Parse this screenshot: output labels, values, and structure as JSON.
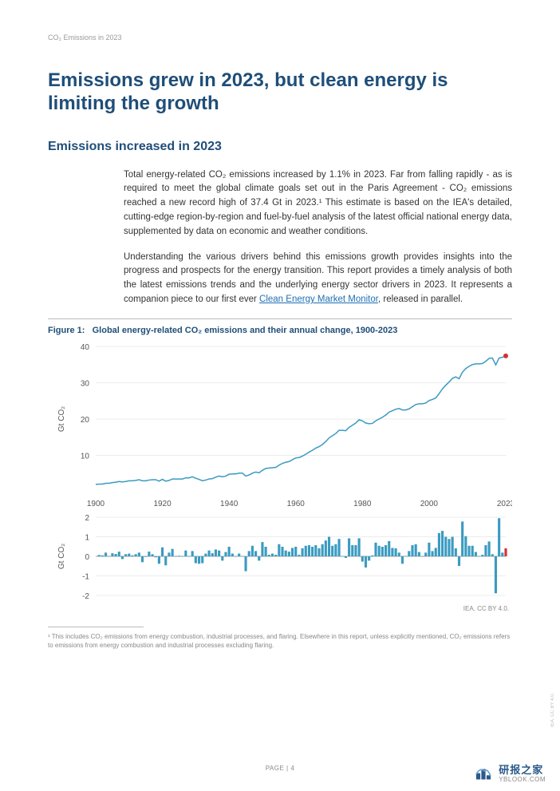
{
  "header": {
    "doc_title": "CO₂ Emissions in 2023"
  },
  "main_title": "Emissions grew in 2023, but clean energy is limiting the growth",
  "sub_title": "Emissions increased in 2023",
  "paragraphs": {
    "p1": "Total energy-related CO₂ emissions increased by 1.1% in 2023. Far from falling rapidly - as is required to meet the global climate goals set out in the Paris Agreement - CO₂ emissions reached a new record high of 37.4 Gt in 2023.¹ This estimate is based on the IEA's detailed, cutting-edge region-by-region and fuel-by-fuel analysis of the latest official national energy data, supplemented by data on economic and weather conditions.",
    "p2_a": "Understanding the various drivers behind this emissions growth provides insights into the progress and prospects for the energy transition. This report provides a timely analysis of both the latest emissions trends and the underlying energy sector drivers in 2023. It represents a companion piece to our first ever ",
    "p2_link": "Clean Energy Market Monitor",
    "p2_b": ", released in parallel."
  },
  "figure": {
    "caption_prefix": "Figure 1:",
    "caption": "Global energy-related CO₂ emissions and their annual change, 1900-2023",
    "attribution": "IEA. CC BY 4.0.",
    "top_chart": {
      "type": "line",
      "ylabel": "Gt CO₂",
      "ylim": [
        0,
        40
      ],
      "yticks": [
        10,
        20,
        30,
        40
      ],
      "xlim": [
        1900,
        2023
      ],
      "xticks": [
        1900,
        1920,
        1940,
        1960,
        1980,
        2000,
        2023
      ],
      "line_color": "#3a9bc1",
      "line_width": 1.5,
      "last_point_color": "#d93030",
      "background_color": "#ffffff",
      "grid_color": "#d9d9d9",
      "series": [
        [
          1900,
          2.0
        ],
        [
          1901,
          2.1
        ],
        [
          1902,
          2.1
        ],
        [
          1903,
          2.3
        ],
        [
          1904,
          2.3
        ],
        [
          1905,
          2.5
        ],
        [
          1906,
          2.6
        ],
        [
          1907,
          2.8
        ],
        [
          1908,
          2.7
        ],
        [
          1909,
          2.8
        ],
        [
          1910,
          3.0
        ],
        [
          1911,
          3.0
        ],
        [
          1912,
          3.1
        ],
        [
          1913,
          3.3
        ],
        [
          1914,
          3.0
        ],
        [
          1915,
          3.0
        ],
        [
          1916,
          3.2
        ],
        [
          1917,
          3.3
        ],
        [
          1918,
          3.3
        ],
        [
          1919,
          2.9
        ],
        [
          1920,
          3.4
        ],
        [
          1921,
          2.9
        ],
        [
          1922,
          3.1
        ],
        [
          1923,
          3.5
        ],
        [
          1924,
          3.5
        ],
        [
          1925,
          3.5
        ],
        [
          1926,
          3.5
        ],
        [
          1927,
          3.8
        ],
        [
          1928,
          3.8
        ],
        [
          1929,
          4.1
        ],
        [
          1930,
          3.7
        ],
        [
          1931,
          3.4
        ],
        [
          1932,
          3.0
        ],
        [
          1933,
          3.2
        ],
        [
          1934,
          3.5
        ],
        [
          1935,
          3.6
        ],
        [
          1936,
          4.0
        ],
        [
          1937,
          4.3
        ],
        [
          1938,
          4.1
        ],
        [
          1939,
          4.3
        ],
        [
          1940,
          4.8
        ],
        [
          1941,
          4.9
        ],
        [
          1942,
          4.9
        ],
        [
          1943,
          5.1
        ],
        [
          1944,
          5.1
        ],
        [
          1945,
          4.3
        ],
        [
          1946,
          4.6
        ],
        [
          1947,
          5.1
        ],
        [
          1948,
          5.4
        ],
        [
          1949,
          5.2
        ],
        [
          1950,
          5.9
        ],
        [
          1951,
          6.4
        ],
        [
          1952,
          6.5
        ],
        [
          1953,
          6.6
        ],
        [
          1954,
          6.7
        ],
        [
          1955,
          7.3
        ],
        [
          1956,
          7.8
        ],
        [
          1957,
          8.1
        ],
        [
          1958,
          8.3
        ],
        [
          1959,
          8.8
        ],
        [
          1960,
          9.3
        ],
        [
          1961,
          9.4
        ],
        [
          1962,
          9.8
        ],
        [
          1963,
          10.3
        ],
        [
          1964,
          10.9
        ],
        [
          1965,
          11.4
        ],
        [
          1966,
          12.0
        ],
        [
          1967,
          12.4
        ],
        [
          1968,
          13.0
        ],
        [
          1969,
          13.8
        ],
        [
          1970,
          14.8
        ],
        [
          1971,
          15.4
        ],
        [
          1972,
          16.0
        ],
        [
          1973,
          16.9
        ],
        [
          1974,
          16.9
        ],
        [
          1975,
          16.8
        ],
        [
          1976,
          17.7
        ],
        [
          1977,
          18.3
        ],
        [
          1978,
          18.9
        ],
        [
          1979,
          19.8
        ],
        [
          1980,
          19.5
        ],
        [
          1981,
          18.9
        ],
        [
          1982,
          18.7
        ],
        [
          1983,
          18.8
        ],
        [
          1984,
          19.5
        ],
        [
          1985,
          20.0
        ],
        [
          1986,
          20.5
        ],
        [
          1987,
          21.1
        ],
        [
          1988,
          21.9
        ],
        [
          1989,
          22.3
        ],
        [
          1990,
          22.7
        ],
        [
          1991,
          22.9
        ],
        [
          1992,
          22.5
        ],
        [
          1993,
          22.5
        ],
        [
          1994,
          22.8
        ],
        [
          1995,
          23.4
        ],
        [
          1996,
          24.0
        ],
        [
          1997,
          24.2
        ],
        [
          1998,
          24.2
        ],
        [
          1999,
          24.4
        ],
        [
          2000,
          25.1
        ],
        [
          2001,
          25.4
        ],
        [
          2002,
          25.8
        ],
        [
          2003,
          27.0
        ],
        [
          2004,
          28.3
        ],
        [
          2005,
          29.3
        ],
        [
          2006,
          30.2
        ],
        [
          2007,
          31.2
        ],
        [
          2008,
          31.6
        ],
        [
          2009,
          31.1
        ],
        [
          2010,
          32.9
        ],
        [
          2011,
          33.9
        ],
        [
          2012,
          34.5
        ],
        [
          2013,
          35.0
        ],
        [
          2014,
          35.2
        ],
        [
          2015,
          35.2
        ],
        [
          2016,
          35.3
        ],
        [
          2017,
          35.9
        ],
        [
          2018,
          36.7
        ],
        [
          2019,
          36.8
        ],
        [
          2020,
          34.9
        ],
        [
          2021,
          36.8
        ],
        [
          2022,
          37.0
        ],
        [
          2023,
          37.4
        ]
      ]
    },
    "bottom_chart": {
      "type": "bar",
      "ylabel": "Gt CO₂",
      "ylim": [
        -2,
        2
      ],
      "yticks": [
        -2,
        -1,
        0,
        1,
        2
      ],
      "xlim": [
        1900,
        2023
      ],
      "bar_color": "#3a9bc1",
      "last_bar_color": "#d93030",
      "background_color": "#ffffff",
      "grid_color": "#d9d9d9",
      "zero_line_color": "#888888",
      "series": [
        [
          1901,
          0.07
        ],
        [
          1902,
          0.05
        ],
        [
          1903,
          0.19
        ],
        [
          1904,
          0.01
        ],
        [
          1905,
          0.16
        ],
        [
          1906,
          0.12
        ],
        [
          1907,
          0.24
        ],
        [
          1908,
          -0.14
        ],
        [
          1909,
          0.11
        ],
        [
          1910,
          0.14
        ],
        [
          1911,
          0.05
        ],
        [
          1912,
          0.11
        ],
        [
          1913,
          0.19
        ],
        [
          1914,
          -0.3
        ],
        [
          1915,
          -0.03
        ],
        [
          1916,
          0.24
        ],
        [
          1917,
          0.11
        ],
        [
          1918,
          -0.05
        ],
        [
          1919,
          -0.38
        ],
        [
          1920,
          0.46
        ],
        [
          1921,
          -0.46
        ],
        [
          1922,
          0.19
        ],
        [
          1923,
          0.38
        ],
        [
          1924,
          0.01
        ],
        [
          1925,
          0.03
        ],
        [
          1926,
          -0.01
        ],
        [
          1927,
          0.3
        ],
        [
          1928,
          0.01
        ],
        [
          1929,
          0.27
        ],
        [
          1930,
          -0.35
        ],
        [
          1931,
          -0.38
        ],
        [
          1932,
          -0.35
        ],
        [
          1933,
          0.14
        ],
        [
          1934,
          0.3
        ],
        [
          1935,
          0.16
        ],
        [
          1936,
          0.35
        ],
        [
          1937,
          0.3
        ],
        [
          1938,
          -0.22
        ],
        [
          1939,
          0.22
        ],
        [
          1940,
          0.49
        ],
        [
          1941,
          0.14
        ],
        [
          1942,
          0.01
        ],
        [
          1943,
          0.14
        ],
        [
          1944,
          0.01
        ],
        [
          1945,
          -0.76
        ],
        [
          1946,
          0.27
        ],
        [
          1947,
          0.54
        ],
        [
          1948,
          0.27
        ],
        [
          1949,
          -0.22
        ],
        [
          1950,
          0.73
        ],
        [
          1951,
          0.49
        ],
        [
          1952,
          0.08
        ],
        [
          1953,
          0.14
        ],
        [
          1954,
          0.08
        ],
        [
          1955,
          0.62
        ],
        [
          1956,
          0.49
        ],
        [
          1957,
          0.3
        ],
        [
          1958,
          0.24
        ],
        [
          1959,
          0.43
        ],
        [
          1960,
          0.49
        ],
        [
          1961,
          0.08
        ],
        [
          1962,
          0.41
        ],
        [
          1963,
          0.54
        ],
        [
          1964,
          0.57
        ],
        [
          1965,
          0.49
        ],
        [
          1966,
          0.57
        ],
        [
          1967,
          0.41
        ],
        [
          1968,
          0.62
        ],
        [
          1969,
          0.81
        ],
        [
          1970,
          1.0
        ],
        [
          1971,
          0.54
        ],
        [
          1972,
          0.62
        ],
        [
          1973,
          0.89
        ],
        [
          1974,
          0.01
        ],
        [
          1975,
          -0.08
        ],
        [
          1976,
          0.92
        ],
        [
          1977,
          0.57
        ],
        [
          1978,
          0.57
        ],
        [
          1979,
          0.92
        ],
        [
          1980,
          -0.27
        ],
        [
          1981,
          -0.57
        ],
        [
          1982,
          -0.22
        ],
        [
          1983,
          0.05
        ],
        [
          1984,
          0.7
        ],
        [
          1985,
          0.54
        ],
        [
          1986,
          0.49
        ],
        [
          1987,
          0.57
        ],
        [
          1988,
          0.78
        ],
        [
          1989,
          0.43
        ],
        [
          1990,
          0.41
        ],
        [
          1991,
          0.19
        ],
        [
          1992,
          -0.38
        ],
        [
          1993,
          0.01
        ],
        [
          1994,
          0.27
        ],
        [
          1995,
          0.57
        ],
        [
          1996,
          0.62
        ],
        [
          1997,
          0.22
        ],
        [
          1998,
          0.01
        ],
        [
          1999,
          0.19
        ],
        [
          2000,
          0.7
        ],
        [
          2001,
          0.27
        ],
        [
          2002,
          0.43
        ],
        [
          2003,
          1.19
        ],
        [
          2004,
          1.3
        ],
        [
          2005,
          1.0
        ],
        [
          2006,
          0.89
        ],
        [
          2007,
          1.0
        ],
        [
          2008,
          0.41
        ],
        [
          2009,
          -0.49
        ],
        [
          2010,
          1.78
        ],
        [
          2011,
          1.03
        ],
        [
          2012,
          0.54
        ],
        [
          2013,
          0.54
        ],
        [
          2014,
          0.22
        ],
        [
          2015,
          0.01
        ],
        [
          2016,
          0.08
        ],
        [
          2017,
          0.57
        ],
        [
          2018,
          0.76
        ],
        [
          2019,
          0.11
        ],
        [
          2020,
          -1.89
        ],
        [
          2021,
          1.95
        ],
        [
          2022,
          0.19
        ],
        [
          2023,
          0.41
        ]
      ]
    }
  },
  "footnote": "¹ This includes CO₂ emissions from energy combustion, industrial processes, and flaring. Elsewhere in this report, unless explicitly mentioned, CO₂ emissions refers to emissions from energy combustion and industrial processes excluding flaring.",
  "page_number": "PAGE | 4",
  "side_attrib": "IEA. CC BY 4.0.",
  "watermark": {
    "cn": "研报之家",
    "en": "YBLOOK.COM"
  }
}
